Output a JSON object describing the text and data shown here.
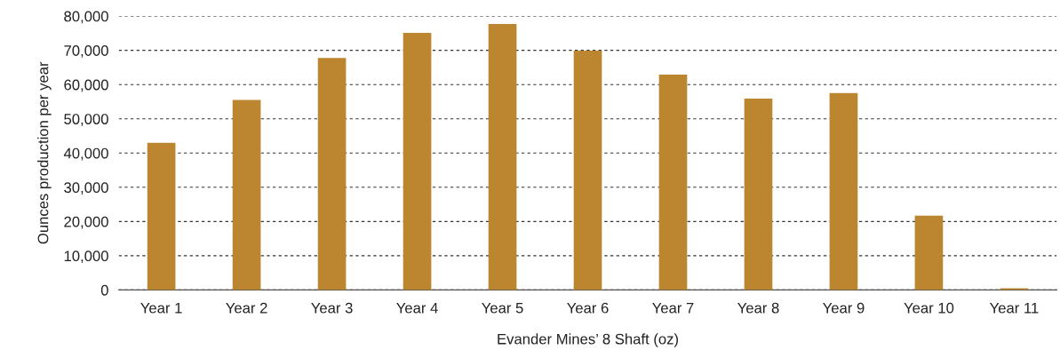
{
  "chart_data": {
    "type": "bar",
    "xlabel": "Evander Mines’ 8 Shaft (oz)",
    "ylabel": "Ounces production per year",
    "categories": [
      "Year 1",
      "Year 2",
      "Year 3",
      "Year 4",
      "Year 5",
      "Year 6",
      "Year 7",
      "Year 8",
      "Year 9",
      "Year 10",
      "Year 11"
    ],
    "series": [
      {
        "color": "#bc8630",
        "values": [
          43000,
          55500,
          67800,
          75100,
          77700,
          69900,
          62900,
          55900,
          57500,
          21700,
          500
        ]
      }
    ],
    "ylim": [
      0,
      80000
    ],
    "yticks": [
      {
        "value": 0,
        "label": "0"
      },
      {
        "value": 10000,
        "label": "10,000"
      },
      {
        "value": 20000,
        "label": "20,000"
      },
      {
        "value": 30000,
        "label": "30,000"
      },
      {
        "value": 40000,
        "label": "40,000"
      },
      {
        "value": 50000,
        "label": "50,000"
      },
      {
        "value": 60000,
        "label": "60,000"
      },
      {
        "value": 70000,
        "label": "70,000"
      },
      {
        "value": 80000,
        "label": "80,000"
      }
    ],
    "grid": "y"
  }
}
